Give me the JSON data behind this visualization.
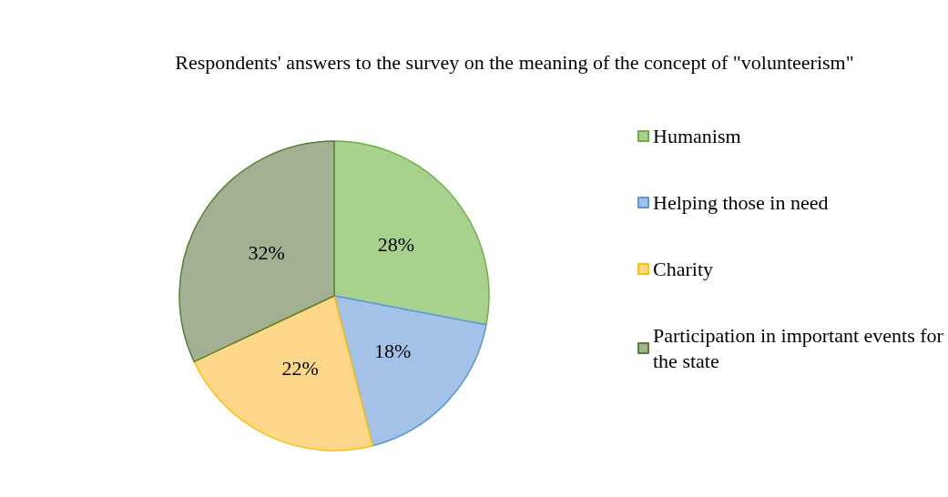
{
  "chart_data": {
    "type": "pie",
    "title": "Respondents' answers to the survey on the meaning of the concept of \"volunteerism\"",
    "categories": [
      "Humanism",
      "Helping those in need",
      "Charity",
      "Participation in important events for the state"
    ],
    "values": [
      28,
      18,
      22,
      32
    ],
    "colors": [
      "#a9d18e",
      "#a4c2e8",
      "#ffd78a",
      "#a3b092"
    ],
    "value_labels": [
      "28%",
      "18%",
      "22%",
      "32%"
    ],
    "legend": "right"
  }
}
